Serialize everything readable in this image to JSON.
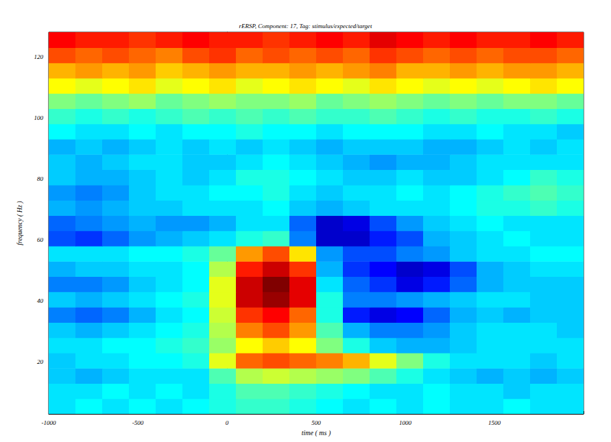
{
  "chart_data": {
    "type": "heatmap",
    "title": "rERSP, Component: 17, Tag: stimulus/expected/target",
    "x_label": "time ( ms )",
    "y_label": "frequency ( Hz )",
    "xlim": [
      -1000,
      2000
    ],
    "xticks": [
      -1000,
      -500,
      0,
      500,
      1000,
      1500
    ],
    "ylim": [
      3,
      128
    ],
    "yticks": [
      20,
      40,
      60,
      80,
      100,
      120
    ],
    "zlim": [
      -1,
      1
    ],
    "x": [
      -925,
      -775,
      -625,
      -475,
      -325,
      -175,
      -25,
      125,
      275,
      425,
      575,
      725,
      875,
      1025,
      1175,
      1325,
      1475,
      1625,
      1775,
      1925
    ],
    "y": [
      5.5,
      10.5,
      15.5,
      20.5,
      25.5,
      30.5,
      35.5,
      40.5,
      45.5,
      50.5,
      55.5,
      60.5,
      65.5,
      70.5,
      75.5,
      80.5,
      85.5,
      90.5,
      95.5,
      100.5,
      105.5,
      110.5,
      115.5,
      120.5,
      125.5
    ],
    "values": [
      [
        -0.3,
        -0.25,
        -0.3,
        -0.25,
        -0.3,
        -0.25,
        -0.2,
        -0.15,
        -0.15,
        -0.2,
        -0.25,
        -0.3,
        -0.25,
        -0.3,
        -0.25,
        -0.3,
        -0.3,
        -0.25,
        -0.3,
        -0.3
      ],
      [
        -0.3,
        -0.3,
        -0.25,
        -0.3,
        -0.25,
        -0.3,
        -0.2,
        -0.1,
        -0.1,
        -0.15,
        -0.2,
        -0.25,
        -0.3,
        -0.3,
        -0.25,
        -0.3,
        -0.3,
        -0.35,
        -0.3,
        -0.3
      ],
      [
        -0.35,
        -0.4,
        -0.35,
        -0.3,
        -0.3,
        -0.3,
        -0.1,
        0.1,
        0.15,
        0.1,
        0.05,
        0,
        -0.1,
        -0.2,
        -0.3,
        -0.35,
        -0.4,
        -0.35,
        -0.4,
        -0.35
      ],
      [
        -0.35,
        -0.3,
        -0.3,
        -0.25,
        -0.25,
        -0.2,
        0.2,
        0.55,
        0.6,
        0.55,
        0.5,
        0.4,
        0.2,
        0,
        -0.2,
        -0.3,
        -0.3,
        -0.3,
        -0.35,
        -0.3
      ],
      [
        -0.3,
        -0.3,
        -0.25,
        -0.25,
        -0.2,
        -0.15,
        0.05,
        0.25,
        0.35,
        0.25,
        0,
        -0.2,
        -0.35,
        -0.4,
        -0.4,
        -0.35,
        -0.3,
        -0.3,
        -0.3,
        -0.3
      ],
      [
        -0.35,
        -0.4,
        -0.35,
        -0.3,
        -0.25,
        -0.2,
        0.1,
        0.5,
        0.6,
        0.45,
        -0.1,
        -0.4,
        -0.5,
        -0.5,
        -0.45,
        -0.35,
        -0.3,
        -0.3,
        -0.3,
        -0.35
      ],
      [
        -0.5,
        -0.55,
        -0.5,
        -0.4,
        -0.3,
        -0.25,
        0.15,
        0.65,
        0.75,
        0.55,
        -0.2,
        -0.7,
        -0.8,
        -0.75,
        -0.55,
        -0.4,
        -0.35,
        -0.4,
        -0.35,
        -0.35
      ],
      [
        -0.35,
        -0.4,
        -0.35,
        -0.3,
        -0.25,
        -0.2,
        0.2,
        0.85,
        0.95,
        0.8,
        -0.2,
        -0.5,
        -0.5,
        -0.45,
        -0.4,
        -0.35,
        -0.3,
        -0.3,
        -0.35,
        -0.35
      ],
      [
        -0.5,
        -0.5,
        -0.45,
        -0.35,
        -0.3,
        -0.25,
        0.2,
        0.85,
        1.0,
        0.8,
        -0.3,
        -0.55,
        -0.65,
        -0.8,
        -0.7,
        -0.55,
        -0.4,
        -0.35,
        -0.35,
        -0.35
      ],
      [
        -0.4,
        -0.35,
        -0.35,
        -0.3,
        -0.3,
        -0.25,
        0.1,
        0.7,
        0.85,
        0.65,
        -0.4,
        -0.65,
        -0.75,
        -0.85,
        -0.8,
        -0.6,
        -0.4,
        -0.35,
        -0.3,
        -0.3
      ],
      [
        -0.3,
        -0.3,
        -0.3,
        -0.25,
        -0.25,
        -0.2,
        -0.05,
        0.45,
        0.6,
        0.3,
        -0.45,
        -0.6,
        -0.6,
        -0.5,
        -0.45,
        -0.35,
        -0.3,
        -0.3,
        -0.25,
        -0.25
      ],
      [
        -0.6,
        -0.65,
        -0.55,
        -0.45,
        -0.4,
        -0.35,
        -0.3,
        -0.2,
        -0.15,
        -0.5,
        -0.85,
        -0.85,
        -0.7,
        -0.6,
        -0.4,
        -0.35,
        -0.3,
        -0.25,
        -0.3,
        -0.3
      ],
      [
        -0.55,
        -0.5,
        -0.45,
        -0.4,
        -0.45,
        -0.45,
        -0.4,
        -0.3,
        -0.3,
        -0.55,
        -0.85,
        -0.8,
        -0.6,
        -0.45,
        -0.35,
        -0.3,
        -0.25,
        -0.3,
        -0.3,
        -0.3
      ],
      [
        -0.4,
        -0.45,
        -0.4,
        -0.35,
        -0.35,
        -0.3,
        -0.3,
        -0.3,
        -0.25,
        -0.35,
        -0.4,
        -0.35,
        -0.3,
        -0.3,
        -0.3,
        -0.25,
        -0.2,
        -0.2,
        -0.15,
        -0.2
      ],
      [
        -0.45,
        -0.5,
        -0.45,
        -0.35,
        -0.3,
        -0.3,
        -0.25,
        -0.25,
        -0.2,
        -0.3,
        -0.35,
        -0.3,
        -0.3,
        -0.25,
        -0.3,
        -0.25,
        -0.2,
        -0.15,
        -0.1,
        -0.15
      ],
      [
        -0.35,
        -0.4,
        -0.4,
        -0.35,
        -0.3,
        -0.35,
        -0.3,
        -0.2,
        -0.2,
        -0.25,
        -0.3,
        -0.35,
        -0.35,
        -0.3,
        -0.35,
        -0.35,
        -0.3,
        -0.25,
        -0.15,
        -0.2
      ],
      [
        -0.35,
        -0.4,
        -0.35,
        -0.3,
        -0.3,
        -0.35,
        -0.35,
        -0.3,
        -0.25,
        -0.3,
        -0.35,
        -0.4,
        -0.45,
        -0.4,
        -0.4,
        -0.35,
        -0.3,
        -0.3,
        -0.3,
        -0.3
      ],
      [
        -0.4,
        -0.35,
        -0.4,
        -0.35,
        -0.3,
        -0.35,
        -0.3,
        -0.35,
        -0.3,
        -0.35,
        -0.4,
        -0.35,
        -0.35,
        -0.35,
        -0.4,
        -0.4,
        -0.35,
        -0.3,
        -0.35,
        -0.3
      ],
      [
        -0.25,
        -0.3,
        -0.3,
        -0.25,
        -0.3,
        -0.25,
        -0.25,
        -0.2,
        -0.25,
        -0.25,
        -0.3,
        -0.25,
        -0.25,
        -0.25,
        -0.3,
        -0.3,
        -0.25,
        -0.3,
        -0.3,
        -0.35
      ],
      [
        -0.15,
        -0.2,
        -0.15,
        -0.2,
        -0.15,
        -0.1,
        -0.15,
        -0.1,
        -0.15,
        -0.1,
        -0.15,
        -0.15,
        -0.1,
        -0.15,
        -0.2,
        -0.15,
        -0.2,
        -0.2,
        -0.15,
        -0.2
      ],
      [
        0,
        -0.05,
        0,
        0.05,
        -0.05,
        0,
        0.05,
        0,
        0,
        0.05,
        -0.05,
        0,
        0.05,
        0,
        -0.05,
        0,
        -0.05,
        0,
        0,
        -0.05
      ],
      [
        0.25,
        0.2,
        0.25,
        0.3,
        0.2,
        0.25,
        0.3,
        0.2,
        0.25,
        0.3,
        0.25,
        0.2,
        0.3,
        0.25,
        0.2,
        0.25,
        0.2,
        0.25,
        0.3,
        0.25
      ],
      [
        0.4,
        0.45,
        0.4,
        0.45,
        0.35,
        0.4,
        0.45,
        0.4,
        0.4,
        0.45,
        0.4,
        0.45,
        0.5,
        0.4,
        0.4,
        0.45,
        0.4,
        0.45,
        0.45,
        0.4
      ],
      [
        0.6,
        0.55,
        0.6,
        0.55,
        0.5,
        0.6,
        0.65,
        0.55,
        0.6,
        0.55,
        0.6,
        0.55,
        0.65,
        0.6,
        0.55,
        0.6,
        0.55,
        0.6,
        0.6,
        0.55
      ],
      [
        0.75,
        0.7,
        0.7,
        0.65,
        0.7,
        0.75,
        0.7,
        0.7,
        0.65,
        0.7,
        0.75,
        0.7,
        0.8,
        0.75,
        0.7,
        0.75,
        0.7,
        0.7,
        0.75,
        0.7
      ]
    ]
  }
}
